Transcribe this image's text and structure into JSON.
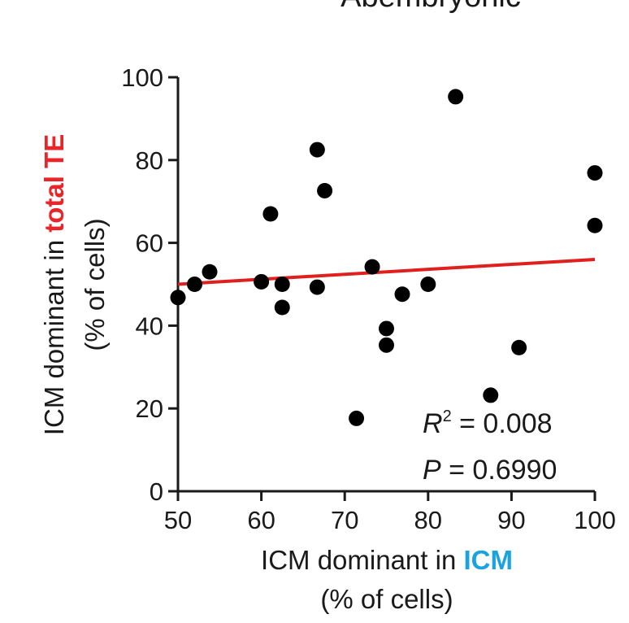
{
  "chart_data": {
    "type": "scatter",
    "title": "Abembryonic",
    "xlabel": {
      "prefix": "ICM dominant in ",
      "highlight": "ICM",
      "highlight_color": "#1ba3e0",
      "units": "(% of cells)"
    },
    "ylabel": {
      "prefix": "ICM dominant in ",
      "highlight": "total TE",
      "highlight_color": "#e8262a",
      "units": "(% of cells)"
    },
    "xlim": [
      50,
      100
    ],
    "ylim": [
      0,
      100
    ],
    "xticks": [
      "50",
      "60",
      "70",
      "80",
      "90",
      "100"
    ],
    "yticks": [
      "0",
      "20",
      "40",
      "60",
      "80",
      "100"
    ],
    "grid": false,
    "point_color": "#000000",
    "fit_line_color": "#e0201f",
    "fit_line": {
      "x": [
        50,
        100
      ],
      "y": [
        50,
        56
      ]
    },
    "points": [
      {
        "x": 50.0,
        "y": 46.8
      },
      {
        "x": 52.0,
        "y": 50.0
      },
      {
        "x": 53.8,
        "y": 53.0
      },
      {
        "x": 60.0,
        "y": 50.6
      },
      {
        "x": 61.1,
        "y": 67.0
      },
      {
        "x": 62.5,
        "y": 50.0
      },
      {
        "x": 62.5,
        "y": 44.4
      },
      {
        "x": 66.7,
        "y": 82.5
      },
      {
        "x": 66.7,
        "y": 49.3
      },
      {
        "x": 67.6,
        "y": 72.6
      },
      {
        "x": 71.4,
        "y": 17.6
      },
      {
        "x": 73.3,
        "y": 54.2
      },
      {
        "x": 75.0,
        "y": 39.3
      },
      {
        "x": 75.0,
        "y": 35.3
      },
      {
        "x": 76.9,
        "y": 47.6
      },
      {
        "x": 80.0,
        "y": 50.0
      },
      {
        "x": 83.3,
        "y": 95.3
      },
      {
        "x": 87.5,
        "y": 23.2
      },
      {
        "x": 90.9,
        "y": 34.7
      },
      {
        "x": 100.0,
        "y": 76.9
      },
      {
        "x": 100.0,
        "y": 64.2
      }
    ],
    "annotations": {
      "r2_symbol": "R",
      "r2_superscript": "2",
      "r2_value": " = 0.008",
      "p_symbol": "P",
      "p_value": " = 0.6990"
    }
  }
}
